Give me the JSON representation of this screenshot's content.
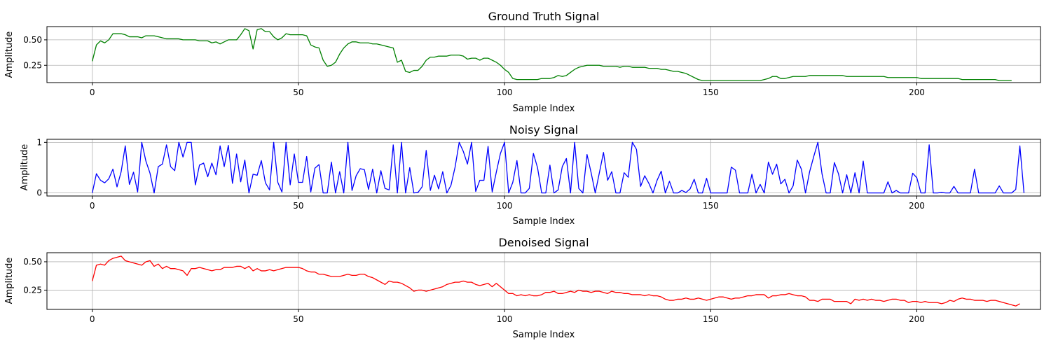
{
  "chart_data": [
    {
      "type": "line",
      "title": "Ground Truth Signal",
      "xlabel": "Sample Index",
      "ylabel": "Amplitude",
      "xlim": [
        -11,
        230
      ],
      "ylim": [
        0.08,
        0.63
      ],
      "xticks": [
        0,
        50,
        100,
        150,
        200
      ],
      "yticks": [
        0.25,
        0.5
      ],
      "ytick_labels": [
        "0.25",
        "0.50"
      ],
      "grid": true,
      "color": "#008000",
      "x_start": 0,
      "values": [
        0.29,
        0.45,
        0.49,
        0.47,
        0.5,
        0.56,
        0.56,
        0.56,
        0.55,
        0.53,
        0.53,
        0.53,
        0.52,
        0.54,
        0.54,
        0.54,
        0.53,
        0.52,
        0.51,
        0.51,
        0.51,
        0.51,
        0.5,
        0.5,
        0.5,
        0.5,
        0.49,
        0.49,
        0.49,
        0.47,
        0.48,
        0.46,
        0.48,
        0.5,
        0.5,
        0.5,
        0.55,
        0.61,
        0.59,
        0.41,
        0.6,
        0.61,
        0.58,
        0.58,
        0.53,
        0.5,
        0.52,
        0.56,
        0.55,
        0.55,
        0.55,
        0.55,
        0.54,
        0.45,
        0.43,
        0.42,
        0.3,
        0.24,
        0.25,
        0.28,
        0.36,
        0.42,
        0.46,
        0.48,
        0.48,
        0.47,
        0.47,
        0.47,
        0.46,
        0.46,
        0.45,
        0.44,
        0.43,
        0.42,
        0.28,
        0.3,
        0.19,
        0.18,
        0.2,
        0.2,
        0.24,
        0.3,
        0.33,
        0.33,
        0.34,
        0.34,
        0.34,
        0.35,
        0.35,
        0.35,
        0.34,
        0.31,
        0.32,
        0.32,
        0.3,
        0.32,
        0.32,
        0.3,
        0.28,
        0.25,
        0.21,
        0.18,
        0.12,
        0.11,
        0.11,
        0.11,
        0.11,
        0.11,
        0.11,
        0.12,
        0.12,
        0.12,
        0.13,
        0.15,
        0.14,
        0.15,
        0.18,
        0.21,
        0.23,
        0.24,
        0.25,
        0.25,
        0.25,
        0.25,
        0.24,
        0.24,
        0.24,
        0.24,
        0.23,
        0.24,
        0.24,
        0.23,
        0.23,
        0.23,
        0.23,
        0.22,
        0.22,
        0.22,
        0.21,
        0.21,
        0.2,
        0.19,
        0.19,
        0.18,
        0.17,
        0.15,
        0.13,
        0.11,
        0.1,
        0.1,
        0.1,
        0.1,
        0.1,
        0.1,
        0.1,
        0.1,
        0.1,
        0.1,
        0.1,
        0.1,
        0.1,
        0.1,
        0.1,
        0.11,
        0.12,
        0.14,
        0.14,
        0.12,
        0.12,
        0.13,
        0.14,
        0.14,
        0.14,
        0.14,
        0.15,
        0.15,
        0.15,
        0.15,
        0.15,
        0.15,
        0.15,
        0.15,
        0.15,
        0.14,
        0.14,
        0.14,
        0.14,
        0.14,
        0.14,
        0.14,
        0.14,
        0.14,
        0.14,
        0.13,
        0.13,
        0.13,
        0.13,
        0.13,
        0.13,
        0.13,
        0.13,
        0.12,
        0.12,
        0.12,
        0.12,
        0.12,
        0.12,
        0.12,
        0.12,
        0.12,
        0.12,
        0.11,
        0.11,
        0.11,
        0.11,
        0.11,
        0.11,
        0.11,
        0.11,
        0.11,
        0.1,
        0.1,
        0.1,
        0.1
      ]
    },
    {
      "type": "line",
      "title": "Noisy Signal",
      "xlabel": "Sample Index",
      "ylabel": "Amplitude",
      "xlim": [
        -11,
        230
      ],
      "ylim": [
        -0.06,
        1.06
      ],
      "xticks": [
        0,
        50,
        100,
        150,
        200
      ],
      "yticks": [
        0,
        1
      ],
      "ytick_labels": [
        "0",
        "1"
      ],
      "grid": true,
      "color": "#0000ff",
      "x_start": 0,
      "values": [
        0.0,
        0.38,
        0.25,
        0.2,
        0.28,
        0.47,
        0.12,
        0.42,
        0.93,
        0.17,
        0.41,
        0.02,
        1.0,
        0.63,
        0.39,
        0.0,
        0.52,
        0.57,
        0.95,
        0.52,
        0.44,
        1.0,
        0.71,
        1.0,
        1.0,
        0.16,
        0.55,
        0.59,
        0.32,
        0.59,
        0.36,
        0.93,
        0.52,
        0.94,
        0.19,
        0.77,
        0.22,
        0.65,
        0.0,
        0.37,
        0.35,
        0.64,
        0.2,
        0.06,
        1.0,
        0.21,
        0.02,
        1.0,
        0.16,
        0.77,
        0.21,
        0.21,
        0.72,
        0.02,
        0.49,
        0.56,
        0.0,
        0.0,
        0.61,
        0.0,
        0.42,
        0.0,
        1.0,
        0.05,
        0.34,
        0.48,
        0.46,
        0.07,
        0.47,
        0.0,
        0.44,
        0.09,
        0.06,
        0.95,
        0.0,
        1.0,
        0.0,
        0.5,
        0.0,
        0.01,
        0.12,
        0.84,
        0.05,
        0.35,
        0.08,
        0.42,
        0.0,
        0.15,
        0.51,
        1.0,
        0.82,
        0.57,
        1.0,
        0.03,
        0.25,
        0.25,
        0.92,
        0.02,
        0.41,
        0.78,
        1.0,
        0.0,
        0.21,
        0.64,
        0.0,
        0.0,
        0.09,
        0.78,
        0.5,
        0.0,
        0.0,
        0.55,
        0.0,
        0.06,
        0.52,
        0.68,
        0.0,
        1.0,
        0.09,
        0.0,
        0.76,
        0.4,
        0.0,
        0.4,
        0.8,
        0.25,
        0.42,
        0.0,
        0.0,
        0.4,
        0.31,
        1.0,
        0.86,
        0.13,
        0.34,
        0.19,
        0.0,
        0.25,
        0.43,
        0.0,
        0.23,
        0.0,
        0.0,
        0.05,
        0.01,
        0.08,
        0.27,
        0.0,
        0.0,
        0.29,
        0.0,
        0.0,
        0.0,
        0.0,
        0.0,
        0.51,
        0.45,
        0.0,
        0.0,
        0.0,
        0.37,
        0.0,
        0.17,
        0.0,
        0.61,
        0.37,
        0.57,
        0.18,
        0.27,
        0.0,
        0.14,
        0.65,
        0.47,
        0.0,
        0.42,
        0.72,
        1.0,
        0.38,
        0.0,
        0.0,
        0.6,
        0.38,
        0.0,
        0.36,
        0.0,
        0.4,
        0.0,
        0.63,
        0.0,
        0.0,
        0.0,
        0.0,
        0.0,
        0.22,
        0.0,
        0.05,
        0.0,
        0.0,
        0.0,
        0.39,
        0.3,
        0.0,
        0.0,
        0.95,
        0.0,
        0.0,
        0.01,
        0.0,
        0.0,
        0.13,
        0.0,
        0.0,
        0.0,
        0.0,
        0.47,
        0.0,
        0.0,
        0.0,
        0.0,
        0.0,
        0.14,
        0.0,
        0.0,
        0.0,
        0.07,
        0.93,
        0.0
      ]
    },
    {
      "type": "line",
      "title": "Denoised Signal",
      "xlabel": "Sample Index",
      "ylabel": "Amplitude",
      "xlim": [
        -11,
        230
      ],
      "ylim": [
        0.08,
        0.58
      ],
      "xticks": [
        0,
        50,
        100,
        150,
        200
      ],
      "yticks": [
        0.25,
        0.5
      ],
      "ytick_labels": [
        "0.25",
        "0.50"
      ],
      "grid": true,
      "color": "#ff0000",
      "x_start": 0,
      "values": [
        0.33,
        0.47,
        0.48,
        0.47,
        0.51,
        0.53,
        0.54,
        0.55,
        0.51,
        0.5,
        0.49,
        0.48,
        0.47,
        0.5,
        0.51,
        0.46,
        0.48,
        0.44,
        0.46,
        0.44,
        0.44,
        0.43,
        0.42,
        0.38,
        0.44,
        0.44,
        0.45,
        0.44,
        0.43,
        0.42,
        0.43,
        0.43,
        0.45,
        0.45,
        0.45,
        0.46,
        0.46,
        0.44,
        0.46,
        0.42,
        0.44,
        0.42,
        0.42,
        0.43,
        0.42,
        0.43,
        0.44,
        0.45,
        0.45,
        0.45,
        0.45,
        0.44,
        0.42,
        0.41,
        0.41,
        0.39,
        0.39,
        0.38,
        0.37,
        0.37,
        0.37,
        0.38,
        0.39,
        0.38,
        0.38,
        0.39,
        0.39,
        0.37,
        0.36,
        0.34,
        0.32,
        0.3,
        0.33,
        0.32,
        0.32,
        0.31,
        0.29,
        0.27,
        0.24,
        0.25,
        0.25,
        0.24,
        0.25,
        0.26,
        0.27,
        0.28,
        0.3,
        0.31,
        0.32,
        0.32,
        0.33,
        0.32,
        0.32,
        0.3,
        0.29,
        0.3,
        0.31,
        0.28,
        0.31,
        0.28,
        0.25,
        0.22,
        0.22,
        0.2,
        0.21,
        0.2,
        0.21,
        0.2,
        0.2,
        0.21,
        0.23,
        0.23,
        0.24,
        0.22,
        0.22,
        0.23,
        0.24,
        0.23,
        0.25,
        0.24,
        0.24,
        0.23,
        0.24,
        0.24,
        0.23,
        0.22,
        0.24,
        0.23,
        0.23,
        0.22,
        0.22,
        0.21,
        0.21,
        0.21,
        0.2,
        0.21,
        0.2,
        0.2,
        0.19,
        0.17,
        0.16,
        0.16,
        0.17,
        0.17,
        0.18,
        0.17,
        0.17,
        0.18,
        0.17,
        0.16,
        0.17,
        0.18,
        0.19,
        0.19,
        0.18,
        0.17,
        0.18,
        0.18,
        0.19,
        0.2,
        0.2,
        0.21,
        0.21,
        0.21,
        0.18,
        0.2,
        0.2,
        0.21,
        0.21,
        0.22,
        0.21,
        0.2,
        0.2,
        0.19,
        0.16,
        0.16,
        0.15,
        0.17,
        0.17,
        0.17,
        0.15,
        0.15,
        0.15,
        0.15,
        0.13,
        0.17,
        0.16,
        0.17,
        0.16,
        0.17,
        0.16,
        0.16,
        0.15,
        0.16,
        0.17,
        0.17,
        0.16,
        0.16,
        0.14,
        0.15,
        0.15,
        0.14,
        0.15,
        0.14,
        0.14,
        0.14,
        0.13,
        0.14,
        0.16,
        0.15,
        0.17,
        0.18,
        0.17,
        0.17,
        0.16,
        0.16,
        0.16,
        0.15,
        0.16,
        0.16,
        0.15,
        0.14,
        0.13,
        0.12,
        0.11,
        0.13
      ]
    }
  ]
}
